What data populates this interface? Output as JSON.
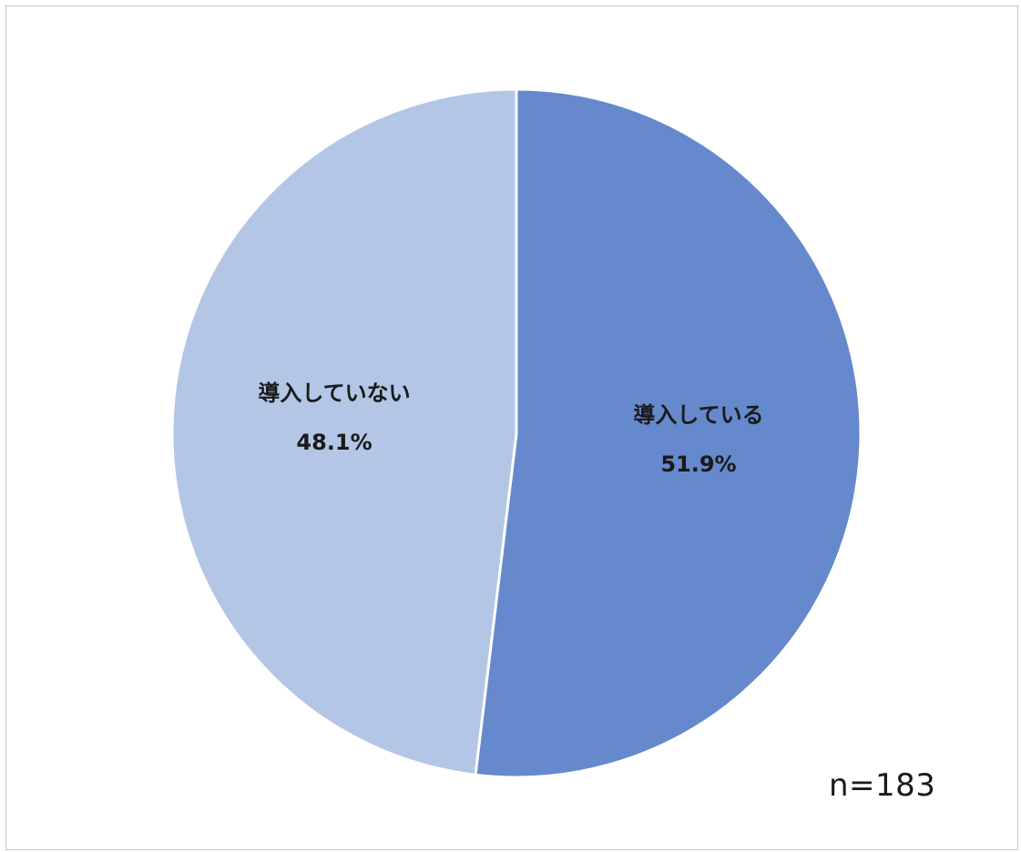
{
  "chart_data": {
    "type": "pie",
    "start_angle_deg": 0,
    "direction": "clockwise",
    "slices": [
      {
        "label": "導入している",
        "value": 51.9,
        "value_label": "51.9%",
        "color": "#6589cc"
      },
      {
        "label": "導入していない",
        "value": 48.1,
        "value_label": "48.1%",
        "color": "#b4c6e6"
      }
    ],
    "note": "n=183",
    "slice_border_color": "#ffffff"
  }
}
